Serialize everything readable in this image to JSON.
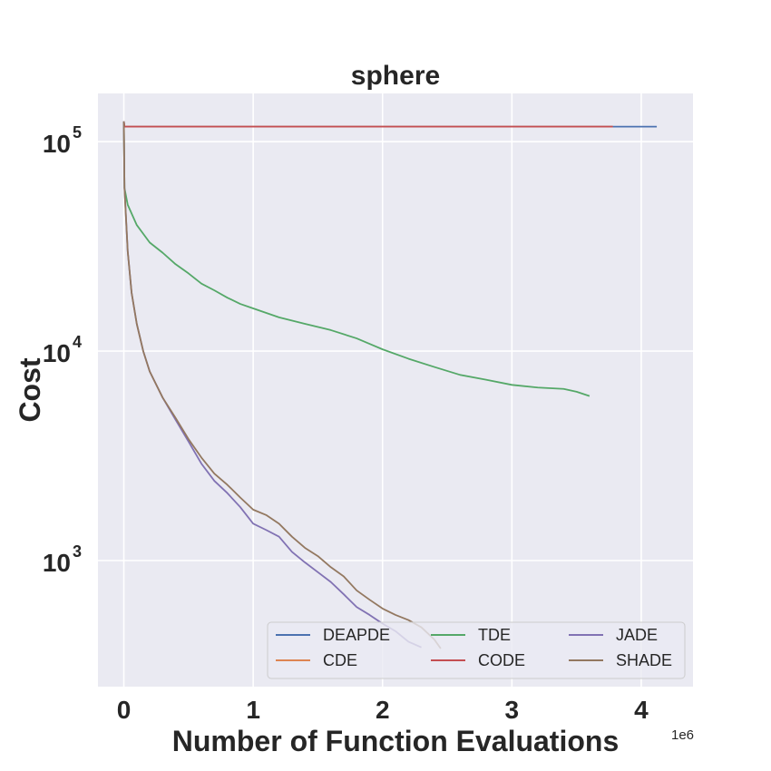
{
  "chart_data": {
    "type": "line",
    "title": "sphere",
    "xlabel": "Number of Function Evaluations",
    "ylabel": "Cost",
    "x_offset_label": "1e6",
    "xlim": [
      -0.2,
      4.4
    ],
    "ylim": [
      250,
      170000
    ],
    "yscale": "log",
    "x_ticks": [
      {
        "value": 0,
        "label": "0"
      },
      {
        "value": 1,
        "label": "1"
      },
      {
        "value": 2,
        "label": "2"
      },
      {
        "value": 3,
        "label": "3"
      },
      {
        "value": 4,
        "label": "4"
      }
    ],
    "y_ticks": [
      {
        "value": 1000,
        "base": "10",
        "exp": "3"
      },
      {
        "value": 10000,
        "base": "10",
        "exp": "4"
      },
      {
        "value": 100000,
        "base": "10",
        "exp": "5"
      }
    ],
    "grid": true,
    "legend_position": "lower-right",
    "legend_columns": 3,
    "background": "#eaeaf2",
    "series": [
      {
        "name": "DEAPDE",
        "color": "#4c72b0",
        "points": [
          [
            0,
            125000
          ],
          [
            0.005,
            118000
          ],
          [
            1.0,
            118000
          ],
          [
            2.0,
            118000
          ],
          [
            3.0,
            118000
          ],
          [
            4.12,
            118000
          ]
        ]
      },
      {
        "name": "CDE",
        "color": "#dd8452",
        "points": [
          [
            0,
            125000
          ],
          [
            0.005,
            118000
          ],
          [
            1.0,
            118000
          ],
          [
            2.0,
            118000
          ],
          [
            3.0,
            118000
          ],
          [
            3.78,
            118000
          ]
        ]
      },
      {
        "name": "TDE",
        "color": "#55a868",
        "points": [
          [
            0,
            125000
          ],
          [
            0.005,
            60000
          ],
          [
            0.03,
            50000
          ],
          [
            0.1,
            40000
          ],
          [
            0.2,
            33000
          ],
          [
            0.3,
            29500
          ],
          [
            0.4,
            26000
          ],
          [
            0.5,
            23500
          ],
          [
            0.6,
            21000
          ],
          [
            0.7,
            19500
          ],
          [
            0.8,
            18000
          ],
          [
            0.9,
            16800
          ],
          [
            1.0,
            16000
          ],
          [
            1.2,
            14500
          ],
          [
            1.4,
            13500
          ],
          [
            1.6,
            12600
          ],
          [
            1.8,
            11500
          ],
          [
            2.0,
            10200
          ],
          [
            2.2,
            9200
          ],
          [
            2.4,
            8400
          ],
          [
            2.6,
            7700
          ],
          [
            2.8,
            7300
          ],
          [
            3.0,
            6900
          ],
          [
            3.2,
            6700
          ],
          [
            3.4,
            6600
          ],
          [
            3.5,
            6400
          ],
          [
            3.6,
            6100
          ]
        ]
      },
      {
        "name": "CODE",
        "color": "#c44e52",
        "points": [
          [
            0,
            125000
          ],
          [
            0.005,
            118000
          ],
          [
            1.0,
            118000
          ],
          [
            2.0,
            118000
          ],
          [
            3.0,
            118000
          ],
          [
            3.78,
            118000
          ]
        ]
      },
      {
        "name": "JADE",
        "color": "#8172b3",
        "points": [
          [
            0,
            125000
          ],
          [
            0.005,
            60000
          ],
          [
            0.03,
            30000
          ],
          [
            0.06,
            19000
          ],
          [
            0.1,
            13500
          ],
          [
            0.15,
            10000
          ],
          [
            0.2,
            8000
          ],
          [
            0.3,
            6000
          ],
          [
            0.4,
            4700
          ],
          [
            0.5,
            3700
          ],
          [
            0.6,
            2900
          ],
          [
            0.7,
            2400
          ],
          [
            0.8,
            2100
          ],
          [
            0.9,
            1800
          ],
          [
            1.0,
            1500
          ],
          [
            1.1,
            1400
          ],
          [
            1.2,
            1300
          ],
          [
            1.3,
            1100
          ],
          [
            1.4,
            980
          ],
          [
            1.5,
            880
          ],
          [
            1.6,
            790
          ],
          [
            1.7,
            690
          ],
          [
            1.8,
            600
          ],
          [
            1.9,
            550
          ],
          [
            2.0,
            500
          ],
          [
            2.1,
            460
          ],
          [
            2.2,
            410
          ],
          [
            2.3,
            385
          ]
        ]
      },
      {
        "name": "SHADE",
        "color": "#937860",
        "points": [
          [
            0,
            125000
          ],
          [
            0.005,
            60000
          ],
          [
            0.03,
            30000
          ],
          [
            0.06,
            19000
          ],
          [
            0.1,
            13500
          ],
          [
            0.15,
            10000
          ],
          [
            0.2,
            8000
          ],
          [
            0.3,
            6000
          ],
          [
            0.4,
            4800
          ],
          [
            0.5,
            3800
          ],
          [
            0.6,
            3100
          ],
          [
            0.7,
            2600
          ],
          [
            0.8,
            2300
          ],
          [
            0.9,
            2000
          ],
          [
            1.0,
            1750
          ],
          [
            1.1,
            1650
          ],
          [
            1.2,
            1500
          ],
          [
            1.3,
            1300
          ],
          [
            1.4,
            1150
          ],
          [
            1.5,
            1050
          ],
          [
            1.6,
            930
          ],
          [
            1.7,
            840
          ],
          [
            1.8,
            720
          ],
          [
            1.9,
            650
          ],
          [
            2.0,
            590
          ],
          [
            2.1,
            550
          ],
          [
            2.2,
            520
          ],
          [
            2.3,
            480
          ],
          [
            2.4,
            420
          ],
          [
            2.45,
            380
          ]
        ]
      }
    ]
  }
}
